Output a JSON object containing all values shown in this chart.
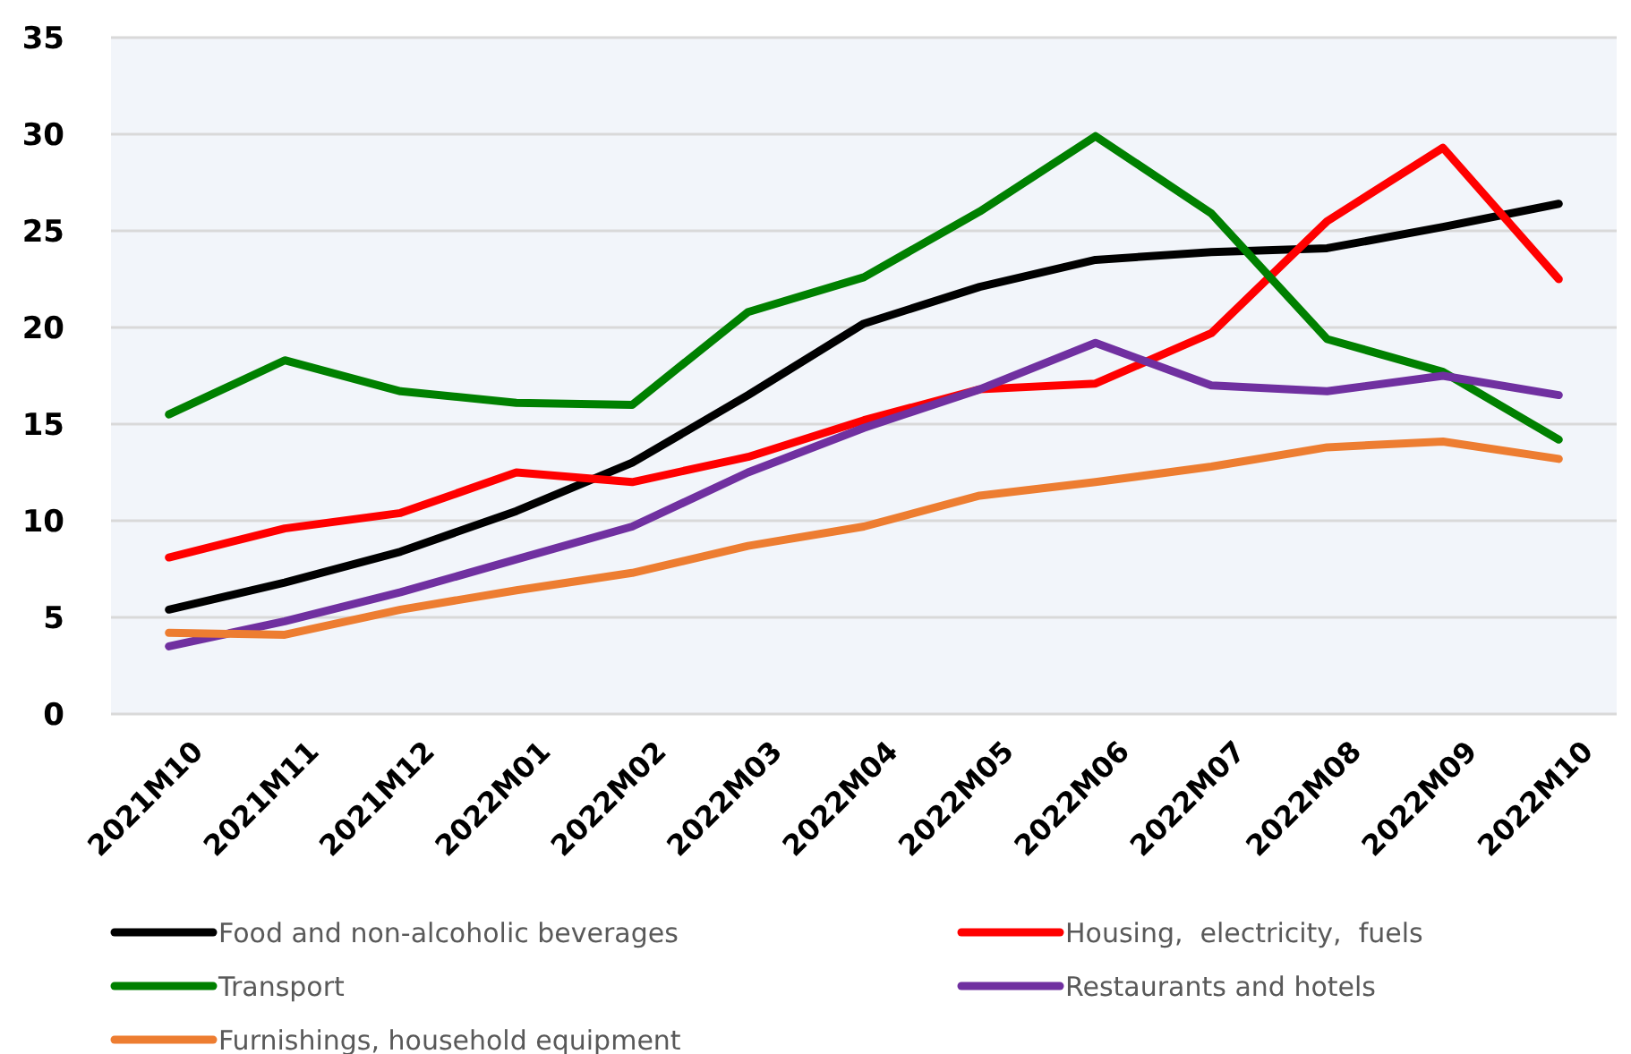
{
  "chart_data": {
    "type": "line",
    "categories": [
      "2021M10",
      "2021M11",
      "2021M12",
      "2022M01",
      "2022M02",
      "2022M03",
      "2022M04",
      "2022M05",
      "2022M06",
      "2022M07",
      "2022M08",
      "2022M09",
      "2022M10"
    ],
    "series": [
      {
        "name": "Food and non-alcoholic beverages",
        "color": "#000000",
        "values": [
          5.4,
          6.8,
          8.4,
          10.5,
          13.0,
          16.5,
          20.2,
          22.1,
          23.5,
          23.9,
          24.1,
          25.2,
          26.4
        ]
      },
      {
        "name": "Housing,  electricity,  fuels",
        "color": "#ff0000",
        "values": [
          8.1,
          9.6,
          10.4,
          12.5,
          12.0,
          13.3,
          15.2,
          16.8,
          17.1,
          19.7,
          25.5,
          29.3,
          22.5
        ]
      },
      {
        "name": "Transport",
        "color": "#008000",
        "values": [
          15.5,
          18.3,
          16.7,
          16.1,
          16.0,
          20.8,
          22.6,
          26.0,
          29.9,
          25.9,
          19.4,
          17.7,
          14.2
        ]
      },
      {
        "name": "Restaurants and hotels",
        "color": "#7030a0",
        "values": [
          3.5,
          4.8,
          6.3,
          8.0,
          9.7,
          12.5,
          14.8,
          16.8,
          19.2,
          17.0,
          16.7,
          17.5,
          16.5
        ]
      },
      {
        "name": "Furnishings, household equipment",
        "color": "#ed7d31",
        "values": [
          4.2,
          4.1,
          5.4,
          6.4,
          7.3,
          8.7,
          9.7,
          11.3,
          12.0,
          12.8,
          13.8,
          14.1,
          13.2
        ]
      }
    ],
    "ylim": [
      0,
      35
    ],
    "yticks": [
      0,
      5,
      10,
      15,
      20,
      25,
      30,
      35
    ],
    "grid": "y",
    "legend": "bottom",
    "marker": "none",
    "line_style": "solid"
  }
}
